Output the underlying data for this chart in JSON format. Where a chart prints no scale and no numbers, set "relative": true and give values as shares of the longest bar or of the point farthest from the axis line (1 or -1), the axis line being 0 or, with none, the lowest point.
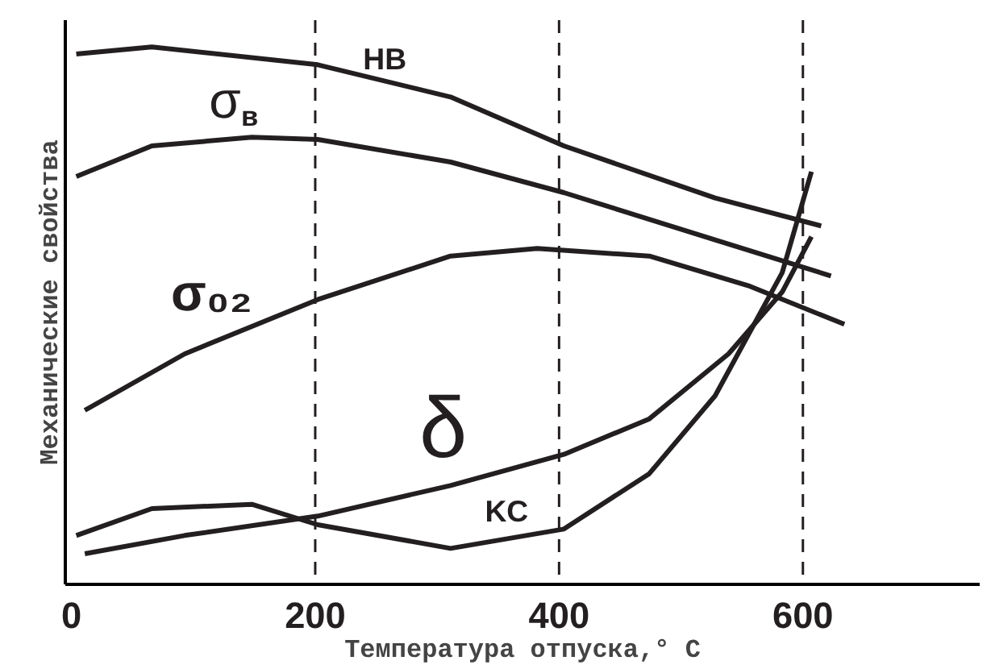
{
  "chart_data": {
    "type": "line",
    "relative": true,
    "xlabel": "Температура отпуска,° С",
    "ylabel": "Механические свойства",
    "xlim": [
      -5,
      745
    ],
    "xticks": [
      0,
      200,
      400,
      600
    ],
    "grid": false,
    "marker": "none",
    "line_style": "solid",
    "ref_lines": [
      {
        "axis": "x",
        "value": 200,
        "line_style": "dashed"
      },
      {
        "axis": "x",
        "value": 400,
        "line_style": "dashed"
      },
      {
        "axis": "x",
        "value": 600,
        "line_style": "dashed"
      }
    ],
    "series": [
      {
        "name": "HB",
        "color": "#231f20",
        "x": [
          4,
          66,
          202,
          311,
          404,
          528,
          615
        ],
        "values": [
          0.987,
          1.0,
          0.967,
          0.907,
          0.816,
          0.719,
          0.667
        ]
      },
      {
        "name": "σ$_{в}$",
        "color": "#231f20",
        "x": [
          4,
          66,
          148,
          202,
          311,
          404,
          528,
          623
        ],
        "values": [
          0.759,
          0.816,
          0.832,
          0.828,
          0.786,
          0.729,
          0.641,
          0.574
        ]
      },
      {
        "name": "σ₀₂",
        "color": "#231f20",
        "x": [
          11,
          93,
          202,
          311,
          382,
          474,
          555,
          634
        ],
        "values": [
          0.324,
          0.429,
          0.53,
          0.611,
          0.625,
          0.611,
          0.556,
          0.484
        ]
      },
      {
        "name": "δ",
        "color": "#231f20",
        "x": [
          11,
          93,
          202,
          311,
          404,
          474,
          539,
          583,
          607
        ],
        "values": [
          0.057,
          0.091,
          0.127,
          0.184,
          0.242,
          0.308,
          0.429,
          0.544,
          0.647
        ]
      },
      {
        "name": "KC",
        "color": "#231f20",
        "x": [
          4,
          66,
          148,
          202,
          311,
          404,
          474,
          528,
          583,
          607
        ],
        "values": [
          0.091,
          0.141,
          0.149,
          0.111,
          0.067,
          0.103,
          0.206,
          0.351,
          0.58,
          0.768
        ]
      }
    ]
  }
}
